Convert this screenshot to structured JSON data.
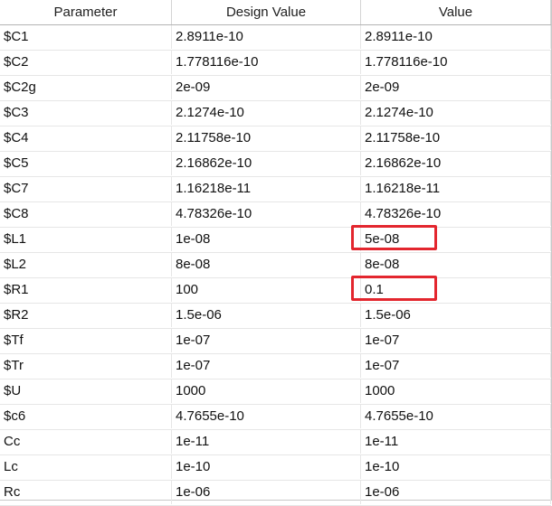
{
  "headers": [
    "Parameter",
    "Design Value",
    "Value"
  ],
  "rows": [
    [
      "$C1",
      "2.8911e-10",
      "2.8911e-10"
    ],
    [
      "$C2",
      "1.778116e-10",
      "1.778116e-10"
    ],
    [
      "$C2g",
      "2e-09",
      "2e-09"
    ],
    [
      "$C3",
      "2.1274e-10",
      "2.1274e-10"
    ],
    [
      "$C4",
      "2.11758e-10",
      "2.11758e-10"
    ],
    [
      "$C5",
      "2.16862e-10",
      "2.16862e-10"
    ],
    [
      "$C7",
      "1.16218e-11",
      "1.16218e-11"
    ],
    [
      "$C8",
      "4.78326e-10",
      "4.78326e-10"
    ],
    [
      "$L1",
      "1e-08",
      "5e-08"
    ],
    [
      "$L2",
      "8e-08",
      "8e-08"
    ],
    [
      "$R1",
      "100",
      "0.1"
    ],
    [
      "$R2",
      "1.5e-06",
      "1.5e-06"
    ],
    [
      "$Tf",
      "1e-07",
      "1e-07"
    ],
    [
      "$Tr",
      "1e-07",
      "1e-07"
    ],
    [
      "$U",
      "1000",
      "1000"
    ],
    [
      "$c6",
      "4.7655e-10",
      "4.7655e-10"
    ],
    [
      "Cc",
      "1e-11",
      "1e-11"
    ],
    [
      "Lc",
      "1e-10",
      "1e-10"
    ],
    [
      "Rc",
      "1e-06",
      "1e-06"
    ]
  ],
  "highlighted_cells": [
    {
      "row": 8,
      "col": 2
    },
    {
      "row": 10,
      "col": 2
    }
  ],
  "highlight_color": "#e3262e"
}
